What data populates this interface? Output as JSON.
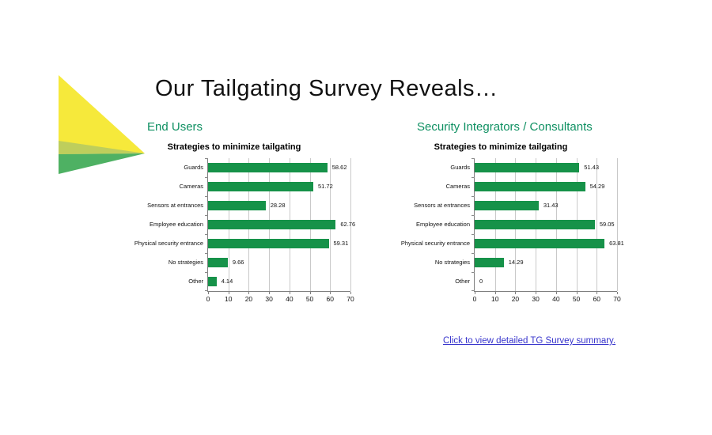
{
  "slide": {
    "title": "Our Tailgating Survey Reveals…",
    "left_heading": "End Users",
    "right_heading": "Security Integrators / Consultants",
    "link_text": "Click to view detailed TG Survey summary."
  },
  "colors": {
    "bar_green": "#169249",
    "heading_green": "#0f9062",
    "link_blue": "#3734cc",
    "gridline_gray": "#c9c9c9",
    "axis_gray": "#7f7f7f",
    "triangle_yellow": "#f6e93b",
    "triangle_olive": "#bece5c",
    "triangle_green": "#4eb163"
  },
  "chart_data": [
    {
      "type": "bar",
      "orientation": "horizontal",
      "group": "End Users",
      "title": "Strategies to minimize tailgating",
      "categories": [
        "Guards",
        "Cameras",
        "Sensors at entrances",
        "Employee education",
        "Physical security entrance",
        "No strategies",
        "Other"
      ],
      "values": [
        58.62,
        51.72,
        28.28,
        62.76,
        59.31,
        9.66,
        4.14
      ],
      "value_labels": [
        "58.62",
        "51.72",
        "28.28",
        "62.76",
        "59.31",
        "9.66",
        "4.14"
      ],
      "xlim": [
        0,
        70
      ],
      "xticks": [
        0,
        10,
        20,
        30,
        40,
        50,
        60,
        70
      ],
      "grid": true,
      "legend": "none",
      "xlabel": "",
      "ylabel": ""
    },
    {
      "type": "bar",
      "orientation": "horizontal",
      "group": "Security Integrators / Consultants",
      "title": "Strategies to minimize tailgating",
      "categories": [
        "Guards",
        "Cameras",
        "Sensors at entrances",
        "Employee education",
        "Physical security entrance",
        "No strategies",
        "Other"
      ],
      "values": [
        51.43,
        54.29,
        31.43,
        59.05,
        63.81,
        14.29,
        0
      ],
      "value_labels": [
        "51.43",
        "54.29",
        "31.43",
        "59.05",
        "63.81",
        "14.29",
        "0"
      ],
      "xlim": [
        0,
        70
      ],
      "xticks": [
        0,
        10,
        20,
        30,
        40,
        50,
        60,
        70
      ],
      "grid": true,
      "legend": "none",
      "xlabel": "",
      "ylabel": ""
    }
  ]
}
